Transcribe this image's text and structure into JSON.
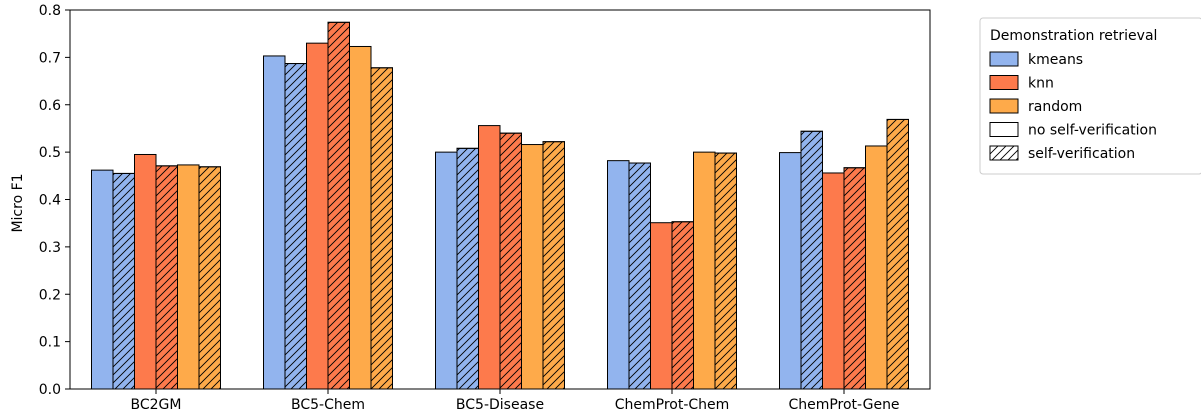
{
  "chart_data": {
    "type": "bar",
    "title": "",
    "xlabel": "",
    "ylabel": "Micro F1",
    "ylim": [
      0,
      0.8
    ],
    "yticks": [
      "0.0",
      "0.1",
      "0.2",
      "0.3",
      "0.4",
      "0.5",
      "0.6",
      "0.7",
      "0.8"
    ],
    "grid": false,
    "categories": [
      "BC2GM",
      "BC5-Chem",
      "BC5-Disease",
      "ChemProt-Chem",
      "ChemProt-Gene"
    ],
    "series": [
      {
        "name": "kmeans no self-verification",
        "retrieval": "kmeans",
        "self_verification": false,
        "values": [
          0.462,
          0.703,
          0.5,
          0.482,
          0.499
        ]
      },
      {
        "name": "kmeans self-verification",
        "retrieval": "kmeans",
        "self_verification": true,
        "values": [
          0.455,
          0.687,
          0.508,
          0.477,
          0.544
        ]
      },
      {
        "name": "knn no self-verification",
        "retrieval": "knn",
        "self_verification": false,
        "values": [
          0.495,
          0.73,
          0.556,
          0.351,
          0.456
        ]
      },
      {
        "name": "knn self-verification",
        "retrieval": "knn",
        "self_verification": true,
        "values": [
          0.471,
          0.774,
          0.54,
          0.353,
          0.467
        ]
      },
      {
        "name": "random no self-verification",
        "retrieval": "random",
        "self_verification": false,
        "values": [
          0.473,
          0.723,
          0.516,
          0.5,
          0.513
        ]
      },
      {
        "name": "random self-verification",
        "retrieval": "random",
        "self_verification": true,
        "values": [
          0.469,
          0.678,
          0.522,
          0.498,
          0.569
        ]
      }
    ],
    "colors": {
      "kmeans": "#92b4ee",
      "knn": "#fd7a4c",
      "random": "#feaa4a"
    },
    "legend": {
      "title": "Demonstration retrieval",
      "placement": "outside-top-right",
      "entries": [
        {
          "label": "kmeans",
          "color": "#92b4ee",
          "hatch": false
        },
        {
          "label": "knn",
          "color": "#fd7a4c",
          "hatch": false
        },
        {
          "label": "random",
          "color": "#feaa4a",
          "hatch": false
        },
        {
          "label": "no self-verification",
          "color": "#ffffff",
          "hatch": false
        },
        {
          "label": "self-verification",
          "color": "#ffffff",
          "hatch": true
        }
      ]
    }
  }
}
